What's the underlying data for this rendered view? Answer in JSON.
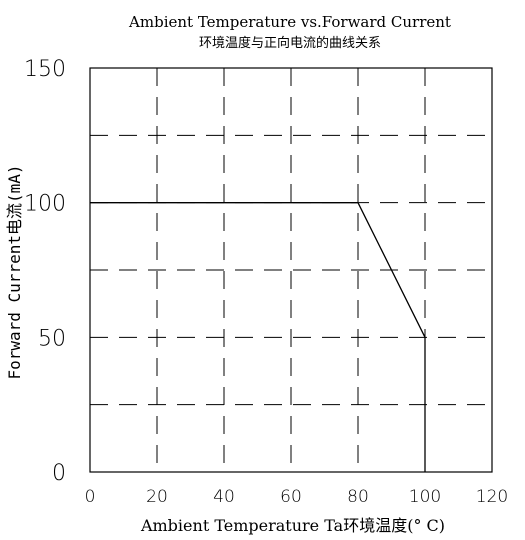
{
  "chart_data": {
    "type": "line",
    "title": "Ambient Temperature vs.Forward Current",
    "subtitle": "环境温度与正向电流的曲线关系",
    "xlabel": "Ambient Temperature Ta环境温度(° C)",
    "ylabel": "Forward Current电流(mA)",
    "xlim": [
      0,
      120
    ],
    "ylim": [
      0,
      150
    ],
    "xticks": [
      0,
      20,
      40,
      60,
      80,
      100,
      120
    ],
    "yticks": [
      0,
      50,
      100,
      150
    ],
    "grid": true,
    "grid_x": [
      20,
      40,
      60,
      80,
      100
    ],
    "grid_y": [
      25,
      50,
      75,
      100,
      125
    ],
    "series": [
      {
        "x": [
          0,
          80,
          100,
          100
        ],
        "y": [
          100,
          100,
          50,
          0
        ]
      }
    ],
    "colors": {
      "line": "#000000",
      "grid": "#000000",
      "background": "#ffffff"
    }
  }
}
